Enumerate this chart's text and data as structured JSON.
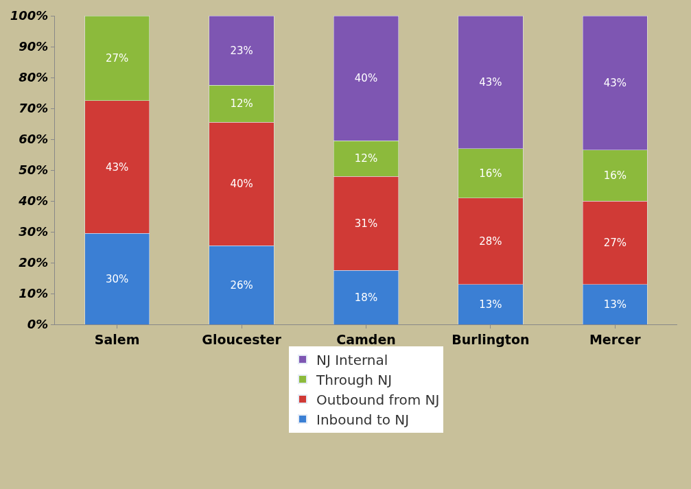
{
  "chart_data": {
    "type": "bar",
    "stacked": true,
    "categories": [
      "Salem",
      "Gloucester",
      "Camden",
      "Burlington",
      "Mercer"
    ],
    "series": [
      {
        "name": "Inbound to NJ",
        "color": "#3b7fd4",
        "values": [
          29.5,
          25.5,
          17.5,
          13,
          13
        ],
        "value_labels": [
          "30%",
          "26%",
          "18%",
          "13%",
          "13%"
        ]
      },
      {
        "name": "Outbound from NJ",
        "color": "#d03a36",
        "values": [
          43,
          40,
          30.5,
          28,
          27
        ],
        "value_labels": [
          "43%",
          "40%",
          "31%",
          "28%",
          "27%"
        ]
      },
      {
        "name": "Through NJ",
        "color": "#8cba3c",
        "values": [
          27.5,
          12,
          11.5,
          16,
          16.5
        ],
        "value_labels": [
          "27%",
          "12%",
          "12%",
          "16%",
          "16%"
        ]
      },
      {
        "name": "NJ Internal",
        "color": "#7e56b2",
        "values": [
          null,
          22.5,
          40.5,
          43,
          43.5
        ],
        "value_labels": [
          null,
          "23%",
          "40%",
          "43%",
          "43%"
        ]
      }
    ],
    "ylim": [
      0,
      100
    ],
    "yticks": [
      {
        "value": 0,
        "label": "0%"
      },
      {
        "value": 10,
        "label": "10%"
      },
      {
        "value": 20,
        "label": "20%"
      },
      {
        "value": 30,
        "label": "30%"
      },
      {
        "value": 40,
        "label": "40%"
      },
      {
        "value": 50,
        "label": "50%"
      },
      {
        "value": 60,
        "label": "60%"
      },
      {
        "value": 70,
        "label": "70%"
      },
      {
        "value": 80,
        "label": "80%"
      },
      {
        "value": 90,
        "label": "90%"
      },
      {
        "value": 100,
        "label": "100%"
      }
    ],
    "grid": false,
    "legend": "bottom"
  }
}
